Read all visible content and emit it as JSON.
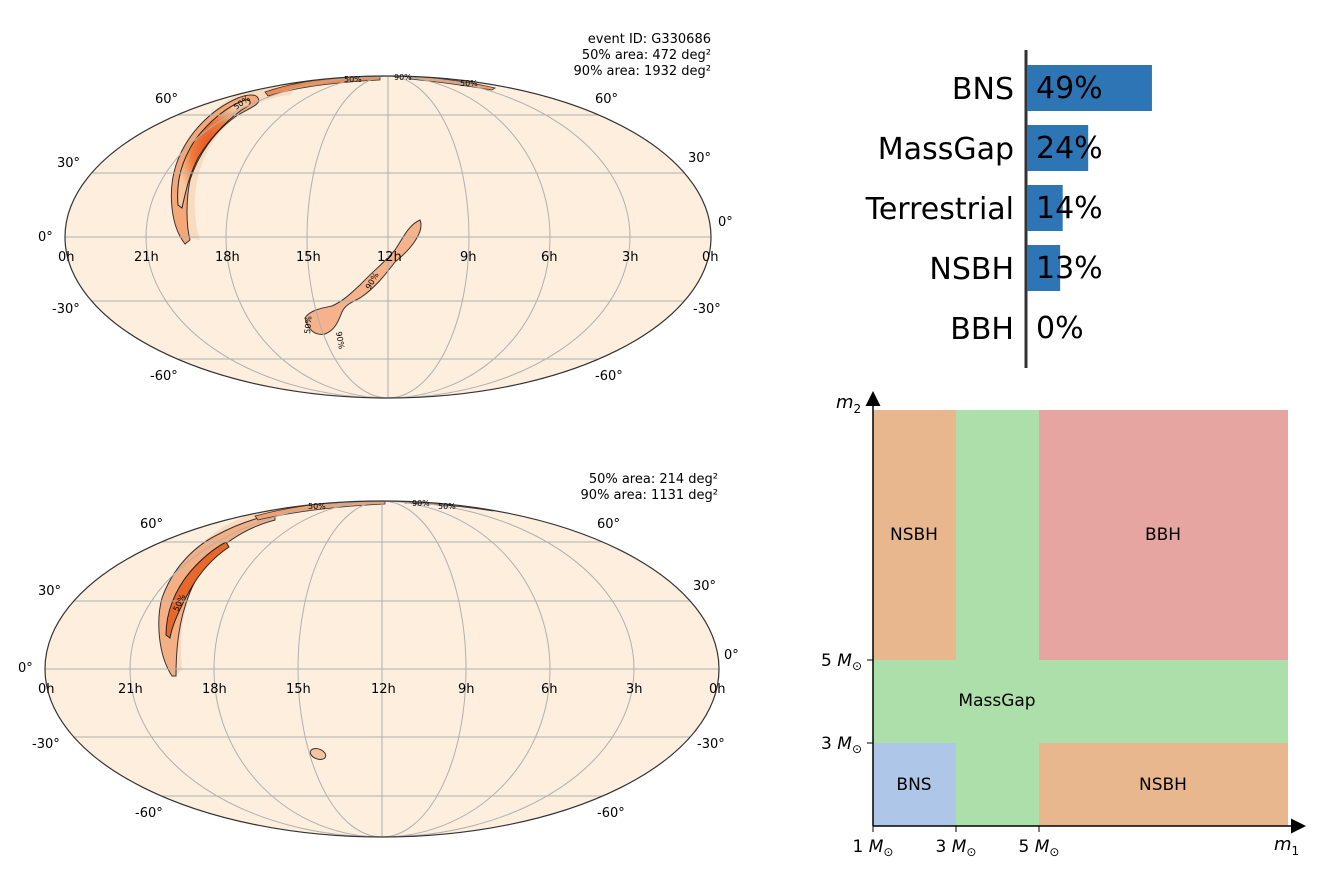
{
  "skymaps": [
    {
      "event_label": "event ID: G330686",
      "area50_label": "50% area: 472 deg²",
      "area90_label": "90% area: 1932 deg²",
      "ra_ticks": [
        "0h",
        "21h",
        "18h",
        "15h",
        "12h",
        "9h",
        "6h",
        "3h",
        "0h"
      ],
      "dec_ticks_left": [
        "60°",
        "30°",
        "0°",
        "-30°",
        "-60°"
      ],
      "dec_ticks_right": [
        "60°",
        "30°",
        "0°",
        "-30°",
        "-60°"
      ],
      "contour_labels": [
        "50%",
        "50%",
        "90%",
        "50%",
        "90%",
        "50%",
        "90%"
      ]
    },
    {
      "event_label": "",
      "area50_label": "50% area: 214 deg²",
      "area90_label": "90% area: 1131 deg²",
      "ra_ticks": [
        "0h",
        "21h",
        "18h",
        "15h",
        "12h",
        "9h",
        "6h",
        "3h",
        "0h"
      ],
      "dec_ticks_left": [
        "60°",
        "30°",
        "0°",
        "-30°",
        "-60°"
      ],
      "dec_ticks_right": [
        "60°",
        "30°",
        "0°",
        "-30°",
        "-60°"
      ],
      "contour_labels": [
        "50%",
        "90%",
        "50%",
        "50%"
      ]
    }
  ],
  "chart_data": [
    {
      "type": "bar",
      "orientation": "horizontal",
      "categories": [
        "BNS",
        "MassGap",
        "Terrestrial",
        "NSBH",
        "BBH"
      ],
      "values": [
        49,
        24,
        14,
        13,
        0
      ],
      "value_labels": [
        "49%",
        "24%",
        "14%",
        "13%",
        "0%"
      ],
      "xlim": [
        0,
        100
      ],
      "color": "#2e75b6"
    },
    {
      "type": "heatmap",
      "x_axis_label": "m",
      "x_axis_sub": "1",
      "y_axis_label": "m",
      "y_axis_sub": "2",
      "x_ticks": [
        "1 M",
        "3 M",
        "5 M"
      ],
      "y_ticks": [
        "3 M",
        "5 M"
      ],
      "tick_symbol": "⊙",
      "regions": [
        {
          "label": "BNS",
          "m1": [
            1,
            3
          ],
          "m2": [
            1,
            3
          ],
          "color": "#aec7e8"
        },
        {
          "label": "MassGap",
          "m1": [
            3,
            5
          ],
          "m2": [
            1,
            8
          ],
          "color": "#addfaa"
        },
        {
          "label": "MassGap",
          "m1": [
            1,
            11
          ],
          "m2": [
            3,
            5
          ],
          "color": "#addfaa"
        },
        {
          "label": "NSBH",
          "m1": [
            5,
            11
          ],
          "m2": [
            1,
            3
          ],
          "color": "#e8b78e"
        },
        {
          "label": "NSBH",
          "m1": [
            1,
            3
          ],
          "m2": [
            5,
            8
          ],
          "color": "#e8b78e"
        },
        {
          "label": "BBH",
          "m1": [
            5,
            11
          ],
          "m2": [
            5,
            8
          ],
          "color": "#e6a5a1"
        }
      ],
      "labels": [
        "BNS",
        "MassGap",
        "NSBH",
        "NSBH",
        "BBH"
      ]
    }
  ]
}
